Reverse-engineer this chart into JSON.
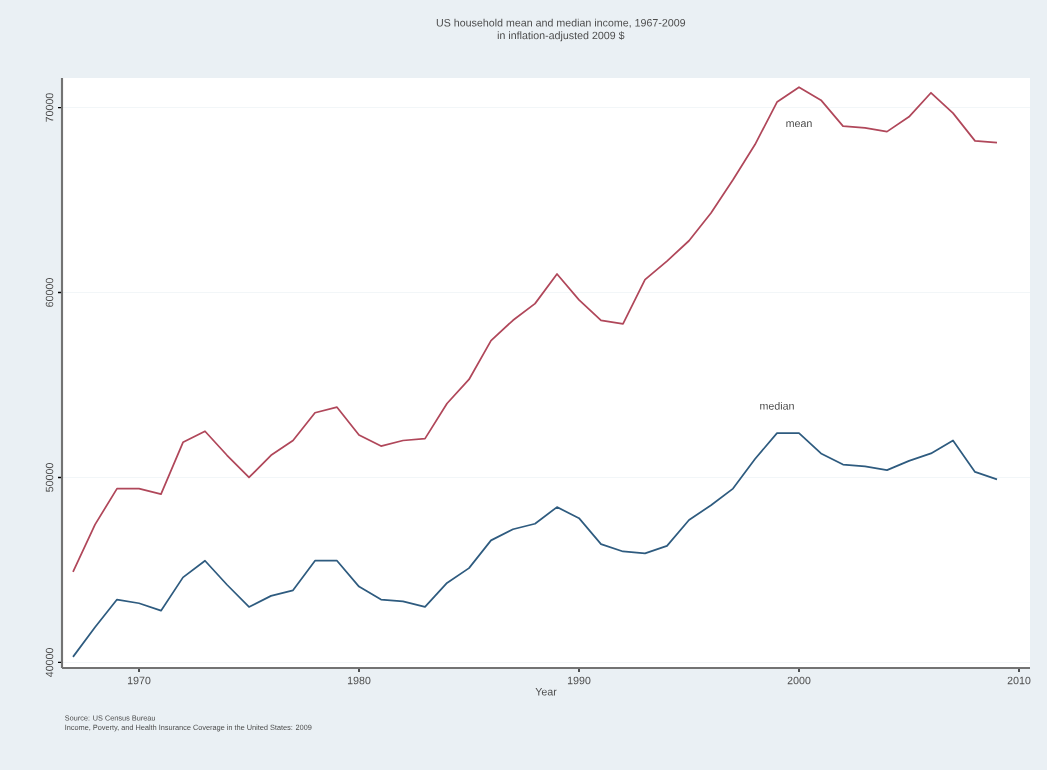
{
  "chart_data": {
    "type": "line",
    "title": "US household mean and median income, 1967-2009",
    "subtitle": "in inflation-adjusted 2009 $",
    "xlabel": "Year",
    "x": [
      1967,
      1968,
      1969,
      1970,
      1971,
      1972,
      1973,
      1974,
      1975,
      1976,
      1977,
      1978,
      1979,
      1980,
      1981,
      1982,
      1983,
      1984,
      1985,
      1986,
      1987,
      1988,
      1989,
      1990,
      1991,
      1992,
      1993,
      1994,
      1995,
      1996,
      1997,
      1998,
      1999,
      2000,
      2001,
      2002,
      2003,
      2004,
      2005,
      2006,
      2007,
      2008,
      2009
    ],
    "series": [
      {
        "name": "mean",
        "color": "#b0475a",
        "values": [
          44900,
          47450,
          49400,
          49400,
          49100,
          51900,
          52500,
          51200,
          50000,
          51200,
          52000,
          53500,
          53800,
          52300,
          51700,
          52000,
          52100,
          54000,
          55300,
          57400,
          58500,
          59400,
          61000,
          59600,
          58500,
          58300,
          60700,
          61700,
          62800,
          64300,
          66100,
          68000,
          70300,
          71100,
          70400,
          69000,
          68900,
          68700,
          69500,
          70800,
          69700,
          68200,
          68100
        ]
      },
      {
        "name": "median",
        "color": "#2e5b7f",
        "values": [
          40300,
          41900,
          43400,
          43200,
          42800,
          44600,
          45500,
          44200,
          43000,
          43600,
          43900,
          45500,
          45500,
          44100,
          43400,
          43300,
          43000,
          44300,
          45100,
          46600,
          47200,
          47500,
          48400,
          47800,
          46400,
          46000,
          45900,
          46300,
          47700,
          48500,
          49400,
          51000,
          52400,
          52400,
          51300,
          50700,
          50600,
          50400,
          50900,
          51300,
          52000,
          50300,
          49900
        ]
      }
    ],
    "xlim": [
      1966.5,
      2010.5
    ],
    "ylim": [
      39700,
      71600
    ],
    "xticks": [
      1970,
      1980,
      1990,
      2000,
      2010
    ],
    "yticks": [
      40000,
      50000,
      60000,
      70000
    ],
    "grid": "y",
    "legend": false,
    "marker": "none",
    "line_style": "solid",
    "annotations": [
      "Source: US Census Bureau",
      "Income, Poverty, and Health Insurance Coverage in the United States: 2009"
    ]
  }
}
